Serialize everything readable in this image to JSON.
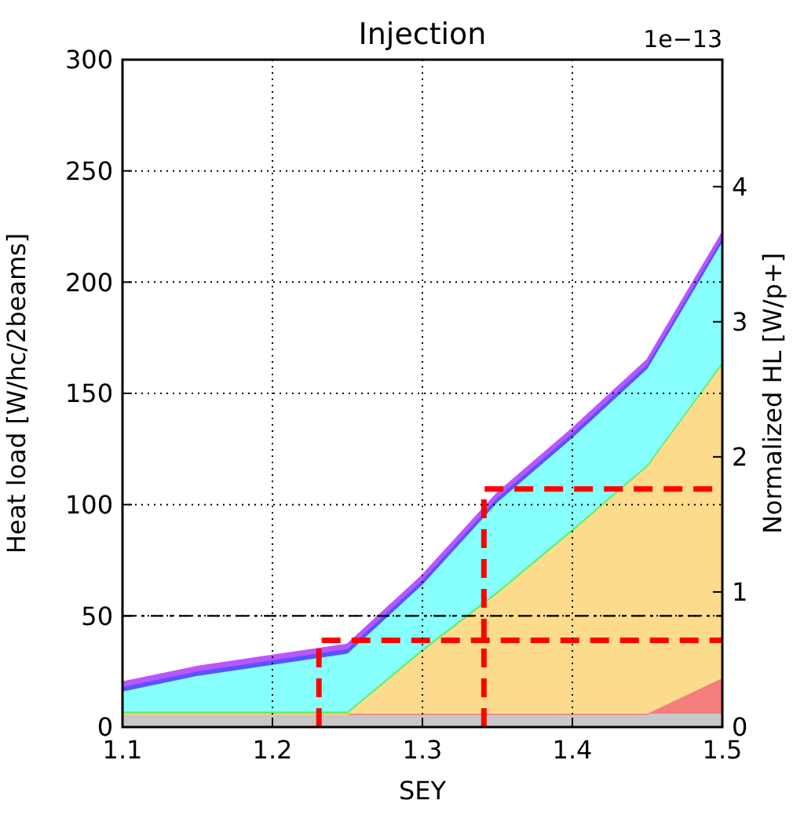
{
  "chart_data": {
    "type": "area",
    "stacked": true,
    "title": "Injection",
    "xlabel": "SEY",
    "ylabel": "Heat load [W/hc/2beams]",
    "y2label": "Normalized HL [W/p+]",
    "annotations": [
      "1e−13"
    ],
    "x": [
      1.1,
      1.15,
      1.2,
      1.25,
      1.3,
      1.35,
      1.4,
      1.45,
      1.5
    ],
    "xlim": [
      1.1,
      1.5
    ],
    "xticks": [
      1.1,
      1.2,
      1.3,
      1.4,
      1.5
    ],
    "ylim": [
      0,
      300
    ],
    "yticks": [
      0,
      50,
      100,
      150,
      200,
      250,
      300
    ],
    "y2lim": [
      0,
      4.94
    ],
    "y2ticks": [
      0,
      1,
      2,
      3,
      4
    ],
    "grid": true,
    "series": [
      {
        "color": "#c8c8c8",
        "values": [
          6,
          6,
          6,
          6,
          6,
          6,
          6,
          6,
          6
        ]
      },
      {
        "color": "#f47d7d",
        "values": [
          0,
          0,
          0,
          0,
          0,
          0,
          0,
          0,
          16
        ]
      },
      {
        "color": "#fcdc8c",
        "values": [
          0,
          0,
          0,
          0,
          28,
          54,
          82,
          111,
          141
        ]
      },
      {
        "color": "#66ee66",
        "values": [
          1,
          1,
          1,
          1,
          1,
          1,
          1,
          1,
          1
        ]
      },
      {
        "color": "#88ffff",
        "values": [
          9,
          16,
          21,
          26,
          29,
          40,
          41,
          43,
          54
        ]
      },
      {
        "color": "#5555ff",
        "values": [
          2,
          2,
          2,
          2,
          2,
          2,
          2,
          2,
          2
        ]
      },
      {
        "color": "#bb55ff",
        "values": [
          2,
          2,
          2,
          2,
          2,
          2,
          2,
          2,
          2
        ]
      },
      {
        "type": "line",
        "color": "#ff0000",
        "line_style": "dashed",
        "x": [
          1.231,
          1.231,
          1.5
        ],
        "values": [
          0,
          39,
          39
        ]
      },
      {
        "type": "line",
        "color": "#ff0000",
        "line_style": "dashed",
        "x": [
          1.341,
          1.341,
          1.5
        ],
        "values": [
          0,
          107,
          107
        ]
      }
    ],
    "ref_lines": [
      {
        "axis": "y",
        "value": 50,
        "color": "#000000",
        "line_style": "dashed"
      }
    ]
  }
}
